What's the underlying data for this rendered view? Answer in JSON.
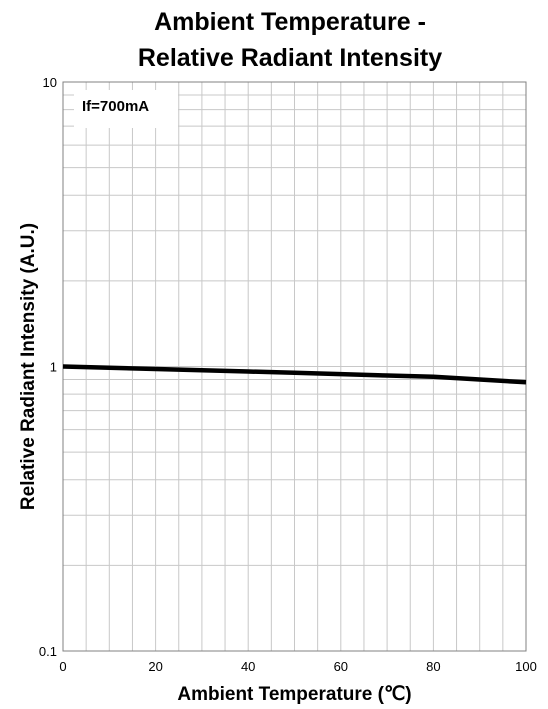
{
  "chart_data": {
    "type": "line",
    "title_line1": "Ambient Temperature -",
    "title_line2": "Relative Radiant Intensity",
    "xlabel": "Ambient Temperature (℃)",
    "ylabel": "Relative Radiant Intensity (A.U.)",
    "annotation": "If=700mA",
    "x_ticks": [
      "0",
      "20",
      "40",
      "60",
      "80",
      "100"
    ],
    "y_ticks": [
      "0.1",
      "1",
      "10"
    ],
    "xlim": [
      0,
      100
    ],
    "ylim": [
      0.1,
      10
    ],
    "y_scale": "log",
    "grid": true,
    "series": [
      {
        "x": [
          0,
          10,
          20,
          30,
          40,
          50,
          60,
          70,
          80,
          90,
          100
        ],
        "y": [
          1.0,
          0.99,
          0.98,
          0.97,
          0.96,
          0.95,
          0.94,
          0.93,
          0.92,
          0.9,
          0.88
        ],
        "color": "#000000"
      }
    ]
  }
}
